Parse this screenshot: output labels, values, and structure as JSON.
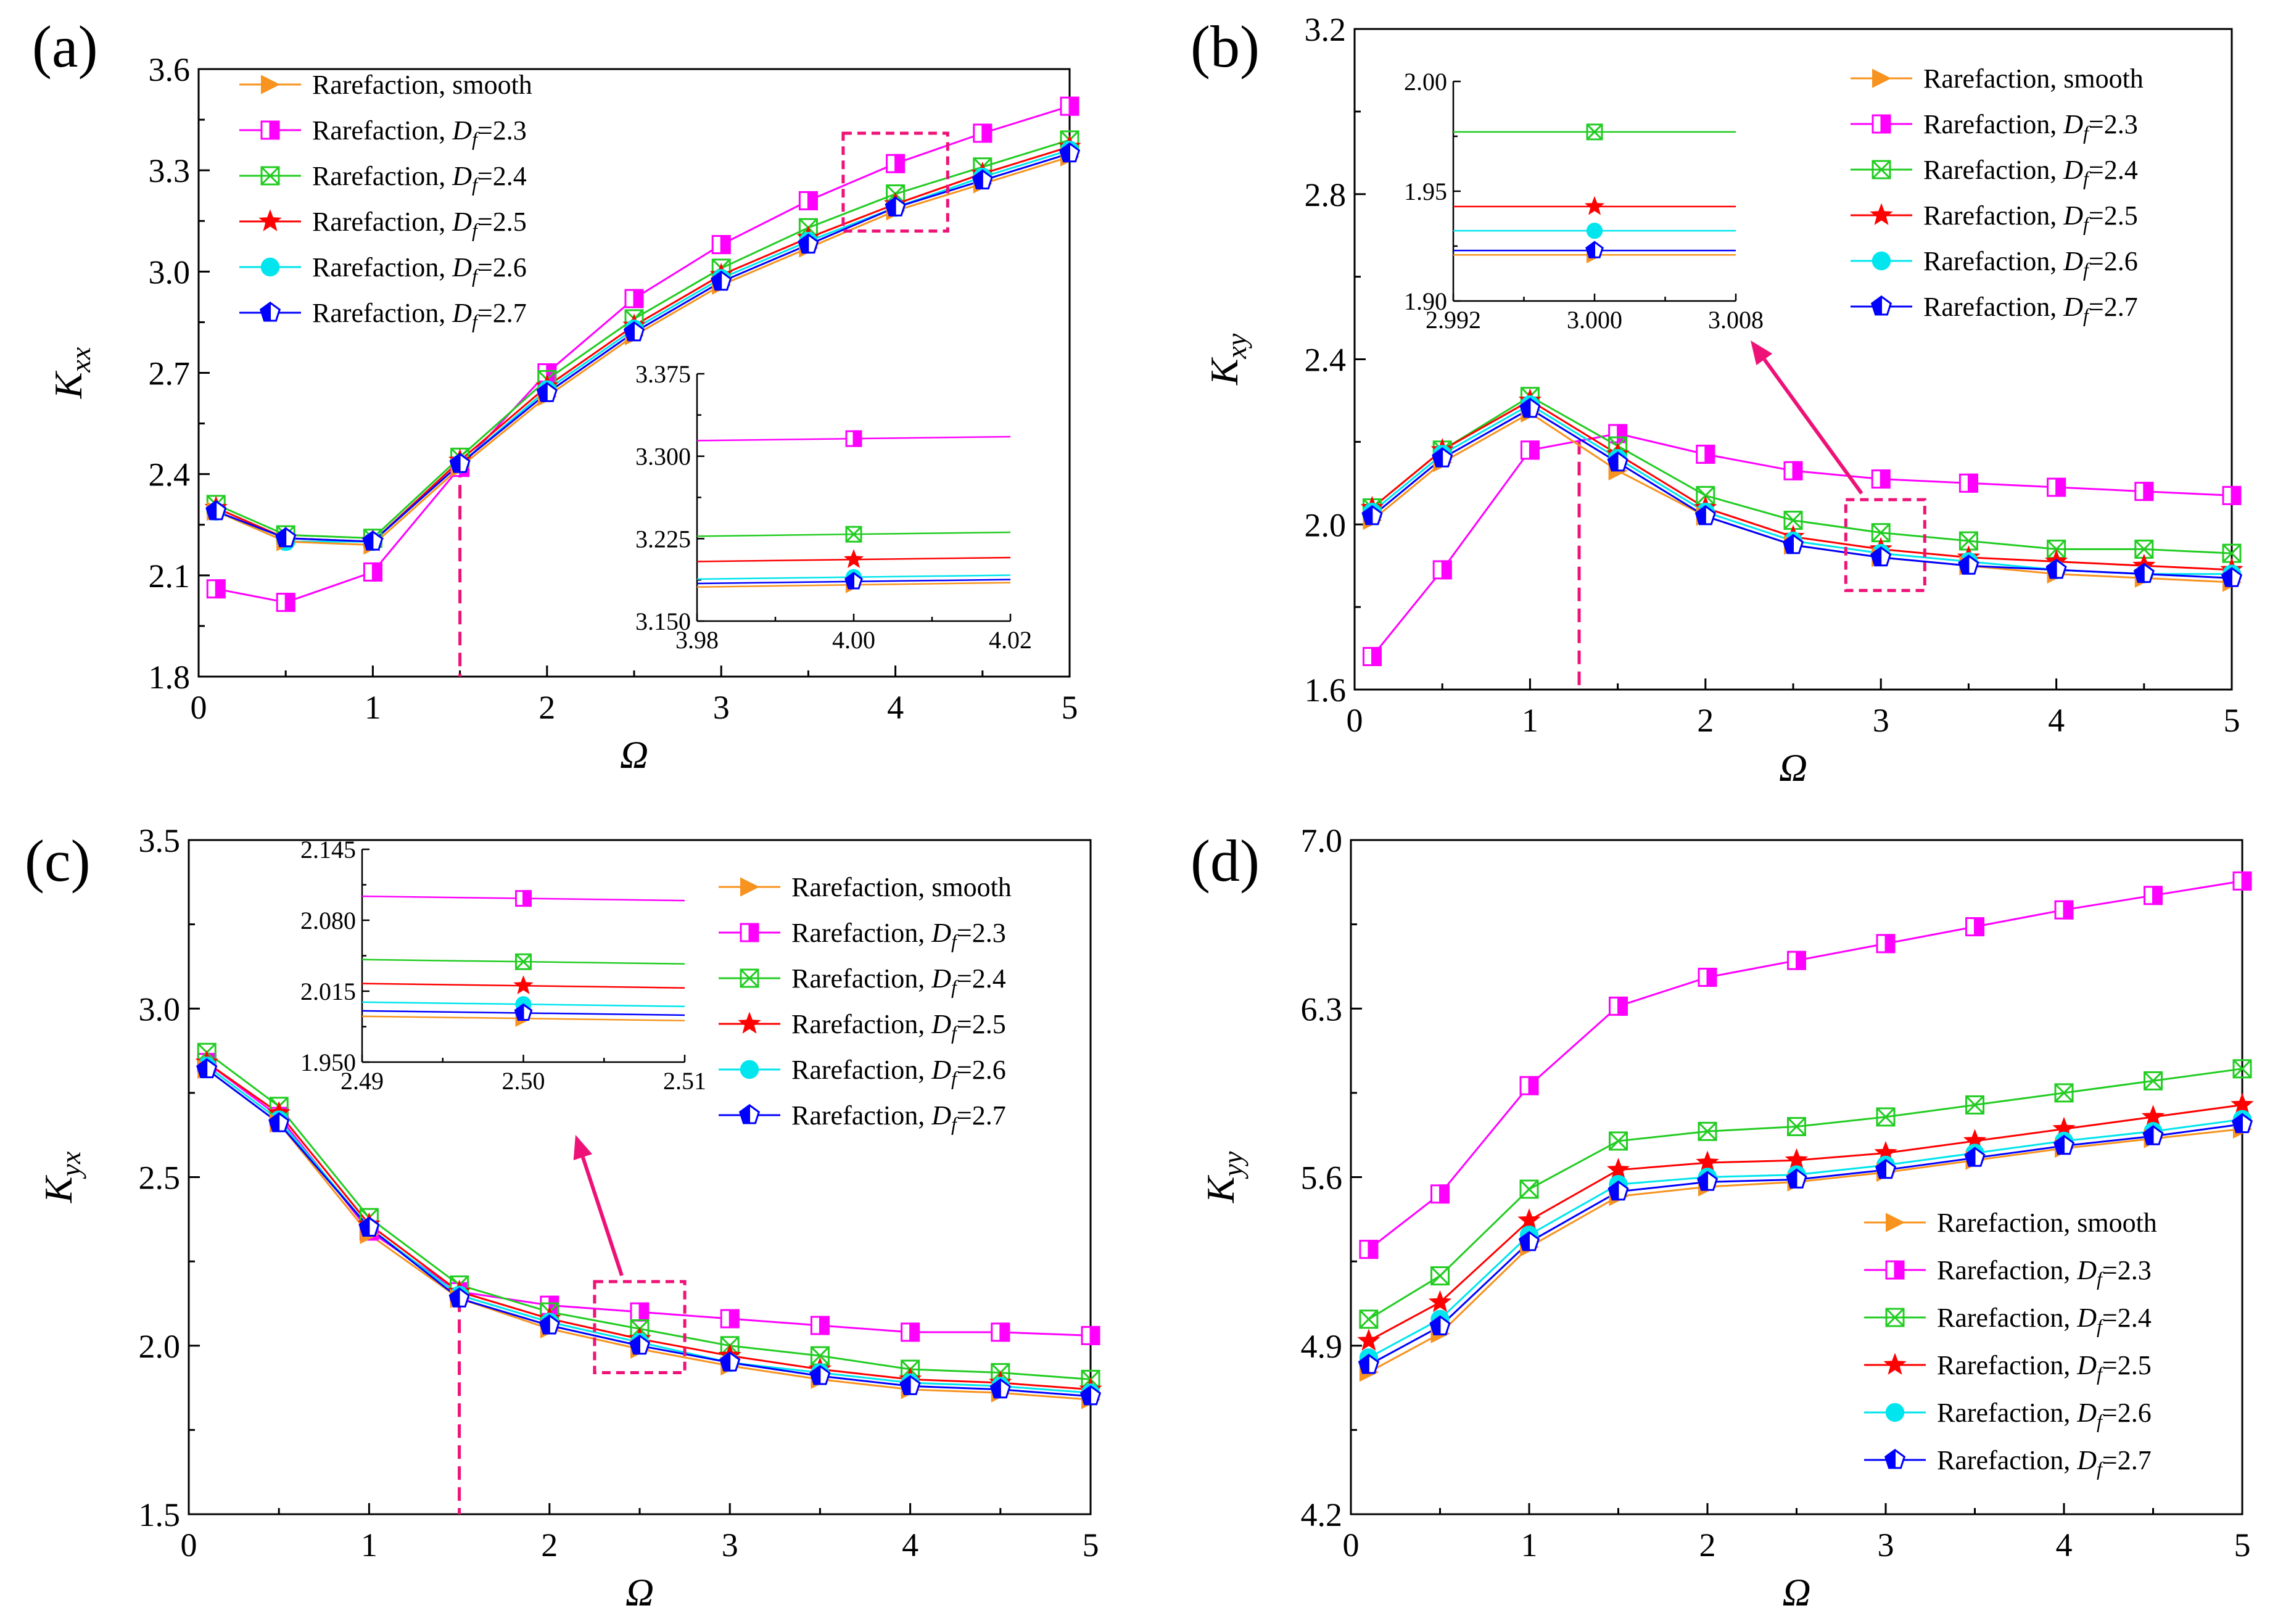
{
  "colors": {
    "smooth": "#F7931E",
    "d23": "#FF00FF",
    "d24": "#22CC22",
    "d25": "#FF0000",
    "d26": "#00E5EE",
    "d27": "#0000FF",
    "highlight": "#EE1177",
    "axis": "#000000"
  },
  "legend_labels": [
    {
      "key": "smooth",
      "marker": "triangle-right",
      "text": "Rarefaction, smooth",
      "df": ""
    },
    {
      "key": "d23",
      "marker": "half-square",
      "text": "Rarefaction, ",
      "df": "=2.3"
    },
    {
      "key": "d24",
      "marker": "crossed-square",
      "text": "Rarefaction, ",
      "df": "=2.4"
    },
    {
      "key": "d25",
      "marker": "star",
      "text": "Rarefaction, ",
      "df": "=2.5"
    },
    {
      "key": "d26",
      "marker": "circle",
      "text": "Rarefaction, ",
      "df": "=2.6"
    },
    {
      "key": "d27",
      "marker": "half-pentagon",
      "text": "Rarefaction, ",
      "df": "=2.7"
    }
  ],
  "chart_data": [
    {
      "panel_label": "(a)",
      "type": "line",
      "xlabel": "Ω",
      "ylabel_main": "K",
      "ylabel_sub": "xx",
      "xlim": [
        0,
        5
      ],
      "ylim": [
        1.8,
        3.6
      ],
      "xticks": [
        "0",
        "1",
        "2",
        "3",
        "4",
        "5"
      ],
      "yticks": [
        "1.8",
        "2.1",
        "2.4",
        "2.7",
        "3.0",
        "3.3",
        "3.6"
      ],
      "x": [
        0.1,
        0.5,
        1,
        1.5,
        2,
        2.5,
        3,
        3.5,
        4,
        4.5,
        5
      ],
      "series": [
        {
          "key": "smooth",
          "values": [
            2.29,
            2.2,
            2.19,
            2.42,
            2.63,
            2.81,
            2.96,
            3.07,
            3.18,
            3.26,
            3.34
          ]
        },
        {
          "key": "d23",
          "values": [
            2.06,
            2.02,
            2.11,
            2.42,
            2.7,
            2.92,
            3.08,
            3.21,
            3.32,
            3.41,
            3.49
          ]
        },
        {
          "key": "d24",
          "values": [
            2.31,
            2.22,
            2.21,
            2.45,
            2.68,
            2.86,
            3.01,
            3.13,
            3.23,
            3.31,
            3.39
          ]
        },
        {
          "key": "d25",
          "values": [
            2.3,
            2.21,
            2.2,
            2.44,
            2.66,
            2.84,
            2.99,
            3.1,
            3.2,
            3.29,
            3.37
          ]
        },
        {
          "key": "d26",
          "values": [
            2.29,
            2.2,
            2.2,
            2.43,
            2.65,
            2.83,
            2.98,
            3.09,
            3.19,
            3.28,
            3.36
          ]
        },
        {
          "key": "d27",
          "values": [
            2.29,
            2.21,
            2.2,
            2.43,
            2.64,
            2.82,
            2.97,
            3.08,
            3.19,
            3.27,
            3.35
          ]
        }
      ],
      "marker_line": {
        "x": 1.5
      },
      "highlight_box": {
        "x": [
          3.7,
          4.3
        ],
        "y": [
          3.12,
          3.41
        ]
      },
      "inset": {
        "xlim": [
          3.98,
          4.02
        ],
        "ylim": [
          3.15,
          3.375
        ],
        "xticks": [
          "3.98",
          "4.00",
          "4.02"
        ],
        "yticks": [
          "3.150",
          "3.225",
          "3.300",
          "3.375"
        ],
        "x": 4.0,
        "values": {
          "smooth": 3.183,
          "d23": 3.316,
          "d24": 3.229,
          "d25": 3.206,
          "d26": 3.19,
          "d27": 3.186
        },
        "slopes": {
          "smooth": 0.1,
          "d23": 0.09,
          "d24": 0.09,
          "d25": 0.09,
          "d26": 0.09,
          "d27": 0.09
        }
      }
    },
    {
      "panel_label": "(b)",
      "type": "line",
      "xlabel": "Ω",
      "ylabel_main": "K",
      "ylabel_sub": "xy",
      "xlim": [
        0,
        5
      ],
      "ylim": [
        1.6,
        3.2
      ],
      "xticks": [
        "0",
        "1",
        "2",
        "3",
        "4",
        "5"
      ],
      "yticks": [
        "1.6",
        "2.0",
        "2.4",
        "2.8",
        "3.2"
      ],
      "x": [
        0.1,
        0.5,
        1,
        1.5,
        2,
        2.5,
        3,
        3.5,
        4,
        4.5,
        5
      ],
      "series": [
        {
          "key": "smooth",
          "values": [
            2.01,
            2.15,
            2.27,
            2.13,
            2.02,
            1.95,
            1.92,
            1.9,
            1.88,
            1.87,
            1.86
          ]
        },
        {
          "key": "d23",
          "values": [
            1.68,
            1.89,
            2.18,
            2.22,
            2.17,
            2.13,
            2.11,
            2.1,
            2.09,
            2.08,
            2.07
          ]
        },
        {
          "key": "d24",
          "values": [
            2.04,
            2.18,
            2.31,
            2.19,
            2.07,
            2.01,
            1.98,
            1.96,
            1.94,
            1.94,
            1.93
          ]
        },
        {
          "key": "d25",
          "values": [
            2.04,
            2.18,
            2.3,
            2.17,
            2.04,
            1.97,
            1.94,
            1.92,
            1.91,
            1.9,
            1.89
          ]
        },
        {
          "key": "d26",
          "values": [
            2.03,
            2.17,
            2.29,
            2.16,
            2.03,
            1.96,
            1.93,
            1.91,
            1.89,
            1.88,
            1.88
          ]
        },
        {
          "key": "d27",
          "values": [
            2.02,
            2.16,
            2.28,
            2.15,
            2.02,
            1.95,
            1.92,
            1.9,
            1.89,
            1.88,
            1.87
          ]
        }
      ],
      "marker_line": {
        "x": 1.28
      },
      "highlight_box": {
        "x": [
          2.8,
          3.25
        ],
        "y": [
          1.84,
          2.06
        ]
      },
      "inset": {
        "xlim": [
          2.992,
          3.008
        ],
        "ylim": [
          1.9,
          2.0
        ],
        "xticks": [
          "2.992",
          "3.000",
          "3.008"
        ],
        "yticks": [
          "1.90",
          "1.95",
          "2.00"
        ],
        "x": 3.0,
        "values": {
          "smooth": 1.921,
          "d23": null,
          "d24": 1.977,
          "d25": 1.943,
          "d26": 1.932,
          "d27": 1.923
        },
        "slopes": {
          "smooth": 0,
          "d23": 0,
          "d24": 0,
          "d25": 0,
          "d26": 0,
          "d27": 0
        }
      }
    },
    {
      "panel_label": "(c)",
      "type": "line",
      "xlabel": "Ω",
      "ylabel_main": "K",
      "ylabel_sub": "yx",
      "xlim": [
        0,
        5
      ],
      "ylim": [
        1.5,
        3.5
      ],
      "xticks": [
        "0",
        "1",
        "2",
        "3",
        "4",
        "5"
      ],
      "yticks": [
        "1.5",
        "2.0",
        "2.5",
        "3.0",
        "3.5"
      ],
      "x": [
        0.1,
        0.5,
        1,
        1.5,
        2,
        2.5,
        3,
        3.5,
        4,
        4.5,
        5
      ],
      "series": [
        {
          "key": "smooth",
          "values": [
            2.82,
            2.66,
            2.33,
            2.14,
            2.05,
            1.99,
            1.94,
            1.9,
            1.87,
            1.86,
            1.84
          ]
        },
        {
          "key": "d23",
          "values": [
            2.84,
            2.68,
            2.34,
            2.16,
            2.12,
            2.1,
            2.08,
            2.06,
            2.04,
            2.04,
            2.03
          ]
        },
        {
          "key": "d24",
          "values": [
            2.87,
            2.71,
            2.38,
            2.18,
            2.1,
            2.05,
            2.0,
            1.97,
            1.93,
            1.92,
            1.9
          ]
        },
        {
          "key": "d25",
          "values": [
            2.84,
            2.69,
            2.36,
            2.16,
            2.08,
            2.02,
            1.97,
            1.93,
            1.9,
            1.89,
            1.87
          ]
        },
        {
          "key": "d26",
          "values": [
            2.83,
            2.67,
            2.35,
            2.15,
            2.07,
            2.01,
            1.95,
            1.92,
            1.89,
            1.88,
            1.86
          ]
        },
        {
          "key": "d27",
          "values": [
            2.82,
            2.66,
            2.35,
            2.14,
            2.06,
            2.0,
            1.95,
            1.91,
            1.88,
            1.87,
            1.85
          ]
        }
      ],
      "marker_line": {
        "x": 1.5
      },
      "highlight_box": {
        "x": [
          2.25,
          2.75
        ],
        "y": [
          1.92,
          2.19
        ]
      },
      "inset": {
        "xlim": [
          2.49,
          2.51
        ],
        "ylim": [
          1.95,
          2.145
        ],
        "xticks": [
          "2.49",
          "2.50",
          "2.51"
        ],
        "yticks": [
          "1.950",
          "2.015",
          "2.080",
          "2.145"
        ],
        "x": 2.5,
        "values": {
          "smooth": 1.99,
          "d23": 2.1,
          "d24": 2.042,
          "d25": 2.02,
          "d26": 2.003,
          "d27": 1.995
        },
        "slopes": {
          "smooth": -0.2,
          "d23": -0.2,
          "d24": -0.2,
          "d25": -0.2,
          "d26": -0.2,
          "d27": -0.2
        }
      }
    },
    {
      "panel_label": "(d)",
      "type": "line",
      "xlabel": "Ω",
      "ylabel_main": "K",
      "ylabel_sub": "yy",
      "xlim": [
        0,
        5
      ],
      "ylim": [
        4.2,
        7.0
      ],
      "xticks": [
        "0",
        "1",
        "2",
        "3",
        "4",
        "5"
      ],
      "yticks": [
        "4.2",
        "4.9",
        "5.6",
        "6.3",
        "7.0"
      ],
      "x": [
        0.1,
        0.5,
        1,
        1.5,
        2,
        2.5,
        3,
        3.5,
        4,
        4.5,
        5
      ],
      "series": [
        {
          "key": "smooth",
          "values": [
            4.79,
            4.95,
            5.31,
            5.52,
            5.56,
            5.58,
            5.62,
            5.67,
            5.72,
            5.76,
            5.8
          ]
        },
        {
          "key": "d23",
          "values": [
            5.3,
            5.53,
            5.98,
            6.31,
            6.43,
            6.5,
            6.57,
            6.64,
            6.71,
            6.77,
            6.83
          ]
        },
        {
          "key": "d24",
          "values": [
            5.01,
            5.19,
            5.55,
            5.75,
            5.79,
            5.81,
            5.85,
            5.9,
            5.95,
            6.0,
            6.05
          ]
        },
        {
          "key": "d25",
          "values": [
            4.92,
            5.08,
            5.42,
            5.63,
            5.66,
            5.67,
            5.7,
            5.75,
            5.8,
            5.85,
            5.9
          ]
        },
        {
          "key": "d26",
          "values": [
            4.85,
            5.01,
            5.36,
            5.57,
            5.6,
            5.61,
            5.65,
            5.7,
            5.75,
            5.79,
            5.84
          ]
        },
        {
          "key": "d27",
          "values": [
            4.82,
            4.98,
            5.33,
            5.54,
            5.58,
            5.59,
            5.63,
            5.68,
            5.73,
            5.77,
            5.82
          ]
        }
      ]
    }
  ]
}
